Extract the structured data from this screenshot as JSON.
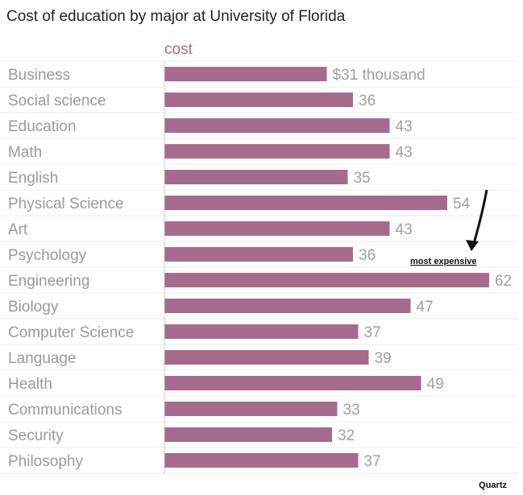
{
  "chart_data": {
    "type": "bar",
    "orientation": "horizontal",
    "title": "Cost of education by major at University of Florida",
    "series_name": "cost",
    "value_prefix": "$",
    "value_suffix": " thousand",
    "categories": [
      "Business",
      "Social science",
      "Education",
      "Math",
      "English",
      "Physical Science",
      "Art",
      "Psychology",
      "Engineering",
      "Biology",
      "Computer Science",
      "Language",
      "Health",
      "Communications",
      "Security",
      "Philosophy"
    ],
    "values": [
      31,
      36,
      43,
      43,
      35,
      54,
      43,
      36,
      62,
      47,
      37,
      39,
      49,
      33,
      32,
      37
    ],
    "value_labels": [
      "$31 thousand",
      "36",
      "43",
      "43",
      "35",
      "54",
      "43",
      "36",
      "62",
      "47",
      "37",
      "39",
      "49",
      "33",
      "32",
      "37"
    ],
    "xlim": [
      0,
      66
    ],
    "grid": true,
    "annotation": {
      "text": "most expensive",
      "target_category": "Engineering"
    },
    "colors": {
      "bar": "#a66b8c",
      "series_label": "#a66b8c",
      "gridline": "#ececec",
      "axis": "#cccccc"
    }
  },
  "source": "Quartz"
}
